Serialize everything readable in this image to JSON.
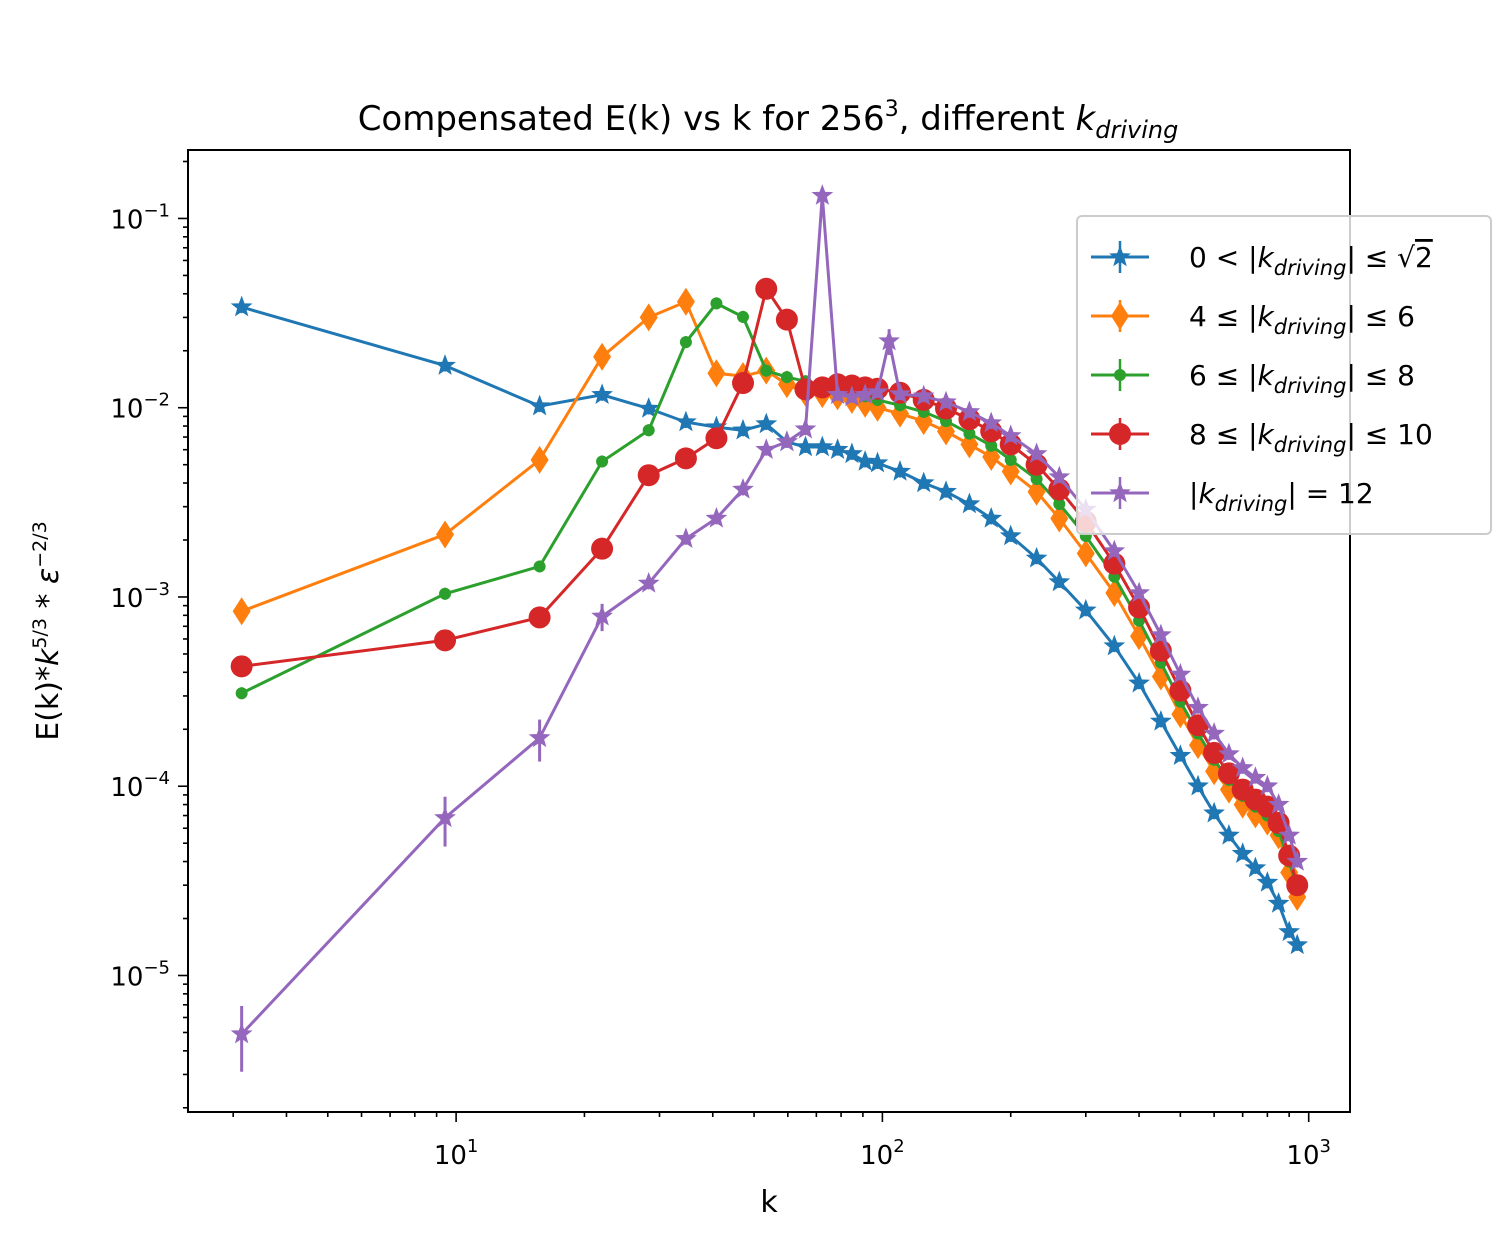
{
  "chart_data": {
    "type": "line",
    "title": "Compensated E(k) vs k for 256³, different k_driving",
    "title_parts": {
      "main": "Compensated E(k) vs k for 256",
      "sup": "3",
      "mid": ", different ",
      "italic": "k",
      "sub": "driving"
    },
    "xlabel": "k",
    "ylabel": "E(k)*k^{5/3} * ε^{-2/3}",
    "ylabel_parts": {
      "main": "E(k)*",
      "italic": "k",
      "sup": "5/3",
      "mid": " * ",
      "eps": "ε",
      "sup2": "−2/3"
    },
    "x_scale": "log",
    "y_scale": "log",
    "xlim": [
      2.35,
      1250
    ],
    "ylim": [
      1.9e-06,
      0.23
    ],
    "x_ticks": [
      {
        "value": 10,
        "base": "10",
        "exp": "1"
      },
      {
        "value": 100,
        "base": "10",
        "exp": "2"
      },
      {
        "value": 1000,
        "base": "10",
        "exp": "3"
      }
    ],
    "y_ticks": [
      {
        "value": 1e-05,
        "base": "10",
        "exp": "−5"
      },
      {
        "value": 0.0001,
        "base": "10",
        "exp": "−4"
      },
      {
        "value": 0.001,
        "base": "10",
        "exp": "−3"
      },
      {
        "value": 0.01,
        "base": "10",
        "exp": "−2"
      },
      {
        "value": 0.1,
        "base": "10",
        "exp": "−1"
      }
    ],
    "grid": false,
    "legend_position": "upper right",
    "series": [
      {
        "name": "0 < |k_driving| ≤ √2",
        "color": "#1f77b4",
        "marker": "star",
        "x": [
          3.14,
          9.42,
          15.7,
          22.0,
          28.3,
          34.6,
          40.8,
          47.1,
          53.4,
          59.7,
          66.0,
          72.3,
          78.5,
          84.8,
          91.1,
          97.4,
          110,
          125,
          141,
          160,
          180,
          200,
          230,
          260,
          300,
          350,
          400,
          450,
          500,
          550,
          600,
          650,
          700,
          750,
          800,
          850,
          900,
          940
        ],
        "y": [
          0.034,
          0.0167,
          0.0102,
          0.0117,
          0.0099,
          0.0084,
          0.0079,
          0.0076,
          0.0082,
          0.0066,
          0.0062,
          0.0062,
          0.006,
          0.0057,
          0.0052,
          0.0051,
          0.0046,
          0.004,
          0.0036,
          0.0031,
          0.0026,
          0.0021,
          0.0016,
          0.0012,
          0.00085,
          0.00055,
          0.00035,
          0.00022,
          0.000145,
          0.0001,
          7.2e-05,
          5.5e-05,
          4.4e-05,
          3.7e-05,
          3.1e-05,
          2.4e-05,
          1.7e-05,
          1.45e-05
        ]
      },
      {
        "name": "4 ≤ |k_driving| ≤ 6",
        "color": "#ff7f0e",
        "marker": "diamond",
        "x": [
          3.14,
          9.42,
          15.7,
          22.0,
          28.3,
          34.6,
          40.8,
          47.1,
          53.4,
          59.7,
          66.0,
          72.3,
          78.5,
          84.8,
          91.1,
          97.4,
          110,
          125,
          141,
          160,
          180,
          200,
          230,
          260,
          300,
          350,
          400,
          450,
          500,
          550,
          600,
          650,
          700,
          750,
          800,
          850,
          900,
          940
        ],
        "y": [
          0.00084,
          0.00214,
          0.0053,
          0.0186,
          0.03,
          0.0363,
          0.0152,
          0.0147,
          0.0157,
          0.0133,
          0.012,
          0.0118,
          0.0115,
          0.011,
          0.0105,
          0.01,
          0.0093,
          0.0085,
          0.0075,
          0.0064,
          0.0055,
          0.0046,
          0.0036,
          0.0026,
          0.0017,
          0.00105,
          0.00062,
          0.00038,
          0.00024,
          0.000165,
          0.00012,
          9.6e-05,
          8e-05,
          7.1e-05,
          6.5e-05,
          5.5e-05,
          3.5e-05,
          2.6e-05
        ]
      },
      {
        "name": "6 ≤ |k_driving| ≤ 8",
        "color": "#2ca02c",
        "marker": "point",
        "x": [
          3.14,
          9.42,
          15.7,
          22.0,
          28.3,
          34.6,
          40.8,
          47.1,
          53.4,
          59.7,
          66.0,
          72.3,
          78.5,
          84.8,
          91.1,
          97.4,
          110,
          125,
          141,
          160,
          180,
          200,
          230,
          260,
          300,
          350,
          400,
          450,
          500,
          550,
          600,
          650,
          700,
          750,
          800,
          850,
          900,
          940
        ],
        "y": [
          0.00031,
          0.00104,
          0.00145,
          0.0052,
          0.0076,
          0.0222,
          0.0356,
          0.0302,
          0.0157,
          0.0145,
          0.0138,
          0.013,
          0.0125,
          0.012,
          0.0115,
          0.011,
          0.0103,
          0.0095,
          0.0085,
          0.0073,
          0.0063,
          0.0053,
          0.0042,
          0.0031,
          0.0021,
          0.00128,
          0.00075,
          0.00045,
          0.00028,
          0.00019,
          0.000138,
          0.000108,
          8.9e-05,
          7.8e-05,
          7e-05,
          5.8e-05,
          4e-05,
          2.9e-05
        ]
      },
      {
        "name": "8 ≤ |k_driving| ≤ 10",
        "color": "#d62728",
        "marker": "circle",
        "x": [
          3.14,
          9.42,
          15.7,
          22.0,
          28.3,
          34.6,
          40.8,
          47.1,
          53.4,
          59.7,
          66.0,
          72.3,
          78.5,
          84.8,
          91.1,
          97.4,
          110,
          125,
          141,
          160,
          180,
          200,
          230,
          260,
          300,
          350,
          400,
          450,
          500,
          550,
          600,
          650,
          700,
          750,
          800,
          850,
          900,
          940
        ],
        "y": [
          0.00043,
          0.00059,
          0.00078,
          0.0018,
          0.0044,
          0.0054,
          0.0069,
          0.0135,
          0.0425,
          0.0292,
          0.0125,
          0.0128,
          0.0133,
          0.0131,
          0.0128,
          0.0126,
          0.012,
          0.011,
          0.0099,
          0.0087,
          0.0075,
          0.0064,
          0.005,
          0.0037,
          0.0025,
          0.0015,
          0.00088,
          0.00052,
          0.00032,
          0.00021,
          0.00015,
          0.000117,
          9.6e-05,
          8.5e-05,
          7.8e-05,
          6.4e-05,
          4.3e-05,
          3e-05
        ]
      },
      {
        "name": "|k_driving| = 12",
        "color": "#9467bd",
        "marker": "plus-star",
        "x": [
          3.14,
          9.42,
          15.7,
          22.0,
          28.3,
          34.6,
          40.8,
          47.1,
          53.4,
          59.7,
          66.0,
          72.3,
          78.5,
          84.8,
          91.1,
          97.4,
          103.7,
          110,
          125,
          141,
          160,
          180,
          200,
          230,
          260,
          300,
          350,
          400,
          450,
          500,
          550,
          600,
          650,
          700,
          750,
          800,
          850,
          900,
          940
        ],
        "y": [
          4.9e-06,
          6.8e-05,
          0.00018,
          0.00079,
          0.00118,
          0.00203,
          0.0026,
          0.0037,
          0.006,
          0.0066,
          0.0077,
          0.132,
          0.0117,
          0.0114,
          0.0117,
          0.0121,
          0.0225,
          0.0118,
          0.0115,
          0.0107,
          0.0095,
          0.0083,
          0.0071,
          0.0057,
          0.0043,
          0.0029,
          0.00175,
          0.00105,
          0.00063,
          0.00039,
          0.00026,
          0.00019,
          0.000148,
          0.000125,
          0.000111,
          0.0001,
          8e-05,
          5.5e-05,
          4e-05
        ],
        "error_points": [
          {
            "x": 3.14,
            "low": 3.1e-06,
            "high": 6.9e-06
          },
          {
            "x": 9.42,
            "low": 4.8e-05,
            "high": 8.8e-05
          },
          {
            "x": 15.7,
            "low": 0.000135,
            "high": 0.000225
          },
          {
            "x": 22.0,
            "low": 0.00066,
            "high": 0.00092
          },
          {
            "x": 103.7,
            "low": 0.019,
            "high": 0.026
          }
        ]
      }
    ],
    "legend": [
      {
        "pre": "0 < |",
        "sub": "driving",
        "post": "| ≤ ",
        "sqrt": "2"
      },
      {
        "pre": "4 ≤ |",
        "sub": "driving",
        "post": "| ≤ 6",
        "sqrt": ""
      },
      {
        "pre": "6 ≤ |",
        "sub": "driving",
        "post": "| ≤ 8",
        "sqrt": ""
      },
      {
        "pre": "8 ≤ |",
        "sub": "driving",
        "post": "| ≤ 10",
        "sqrt": ""
      },
      {
        "pre": "|",
        "sub": "driving",
        "post": "| = 12",
        "sqrt": ""
      }
    ]
  }
}
